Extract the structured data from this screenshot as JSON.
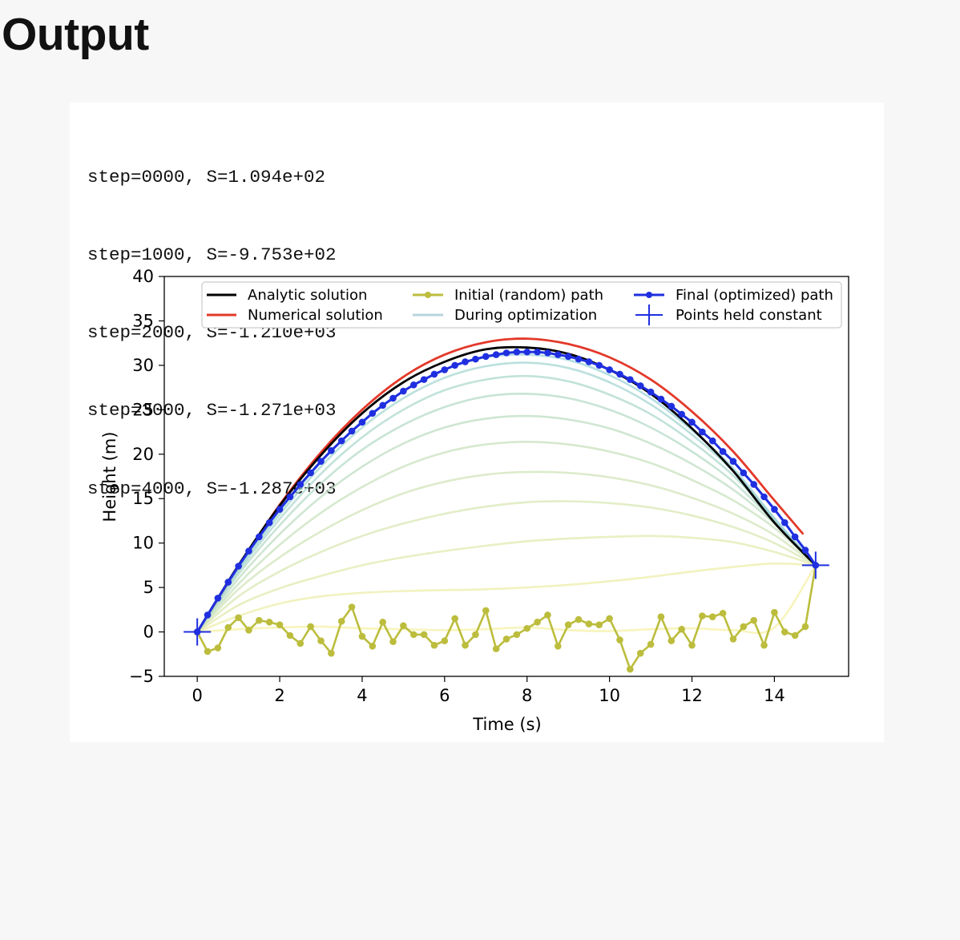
{
  "heading": "Output",
  "log_lines": [
    "step=0000, S=1.094e+02",
    "step=1000, S=-9.753e+02",
    "step=2000, S=-1.210e+03",
    "step=3000, S=-1.271e+03",
    "step=4000, S=-1.287e+03"
  ],
  "colors": {
    "analytic": "#000000",
    "numerical": "#e3392a",
    "initial": "#bcbd3d",
    "during": "#b8d4dd",
    "final": "#1f2fe0",
    "held": "#1f2fe0"
  },
  "chart_data": {
    "type": "line",
    "title": "",
    "xlabel": "Time (s)",
    "ylabel": "Height (m)",
    "xlim": [
      -0.8,
      15.8
    ],
    "ylim": [
      -5,
      40
    ],
    "x_ticks": [
      0,
      2,
      4,
      6,
      8,
      10,
      12,
      14
    ],
    "y_ticks": [
      -5,
      0,
      5,
      10,
      15,
      20,
      25,
      30,
      35,
      40
    ],
    "grid": false,
    "legend_position": "top",
    "legend": [
      "Analytic solution",
      "Numerical solution",
      "Initial (random) path",
      "During optimization",
      "Final (optimized) path",
      "Points held constant"
    ],
    "analytic": {
      "name": "Analytic solution",
      "x": [
        0,
        1,
        2,
        3,
        4,
        5,
        6,
        7,
        8,
        9,
        10,
        11,
        12,
        13,
        14,
        15
      ],
      "y": [
        0,
        7.5,
        14.2,
        19.9,
        24.6,
        28.1,
        30.4,
        31.8,
        32.0,
        31.3,
        29.5,
        26.8,
        22.9,
        18.1,
        12.3,
        7.5
      ]
    },
    "numerical": {
      "name": "Numerical solution",
      "x": [
        0,
        1,
        2,
        3,
        4,
        5,
        6,
        7,
        8,
        9,
        10,
        11,
        12,
        13,
        14,
        14.7
      ],
      "y": [
        0,
        7.4,
        14.3,
        20.2,
        25.0,
        28.7,
        31.2,
        32.6,
        33.0,
        32.4,
        30.9,
        28.4,
        24.8,
        20.3,
        14.8,
        11.0
      ]
    },
    "initial": {
      "name": "Initial (random) path",
      "x": [
        0,
        0.25,
        0.5,
        0.75,
        1.0,
        1.25,
        1.5,
        1.75,
        2.0,
        2.25,
        2.5,
        2.75,
        3.0,
        3.25,
        3.5,
        3.75,
        4.0,
        4.25,
        4.5,
        4.75,
        5.0,
        5.25,
        5.5,
        5.75,
        6.0,
        6.25,
        6.5,
        6.75,
        7.0,
        7.25,
        7.5,
        7.75,
        8.0,
        8.25,
        8.5,
        8.75,
        9.0,
        9.25,
        9.5,
        9.75,
        10.0,
        10.25,
        10.5,
        10.75,
        11.0,
        11.25,
        11.5,
        11.75,
        12.0,
        12.25,
        12.5,
        12.75,
        13.0,
        13.25,
        13.5,
        13.75,
        14.0,
        14.25,
        14.5,
        14.75,
        15.0
      ],
      "y": [
        0,
        -2.2,
        -1.8,
        0.5,
        1.6,
        0.2,
        1.3,
        1.1,
        0.8,
        -0.4,
        -1.3,
        0.6,
        -1.0,
        -2.4,
        1.2,
        2.8,
        -0.5,
        -1.6,
        1.1,
        -1.1,
        0.7,
        -0.3,
        -0.3,
        -1.5,
        -1.0,
        1.5,
        -1.5,
        -0.3,
        2.4,
        -1.9,
        -0.8,
        -0.3,
        0.4,
        1.1,
        1.9,
        -1.6,
        0.8,
        1.4,
        0.9,
        0.8,
        1.5,
        -0.9,
        -4.2,
        -2.4,
        -1.4,
        1.7,
        -1.0,
        0.3,
        -1.5,
        1.8,
        1.7,
        2.1,
        -0.8,
        0.6,
        1.3,
        -1.5,
        2.2,
        0.0,
        -0.4,
        0.6,
        7.5
      ]
    },
    "during": {
      "name": "During optimization",
      "x": [
        0,
        1,
        2,
        3,
        4,
        5,
        6,
        7,
        8,
        9,
        10,
        11,
        12,
        13,
        14,
        15
      ],
      "paths": [
        [
          0,
          0.3,
          0.5,
          0.6,
          0.4,
          0.3,
          0.2,
          0.3,
          0.5,
          0.2,
          0.1,
          0.3,
          0.4,
          0.2,
          0.5,
          7.5
        ],
        [
          0,
          1.8,
          3.2,
          4.0,
          4.4,
          4.6,
          4.7,
          4.8,
          5.0,
          5.3,
          5.7,
          6.2,
          6.8,
          7.3,
          7.7,
          7.5
        ],
        [
          0,
          3.0,
          4.9,
          6.3,
          7.5,
          8.4,
          9.1,
          9.7,
          10.2,
          10.5,
          10.7,
          10.8,
          10.6,
          10.1,
          9.0,
          7.5
        ],
        [
          0,
          4.0,
          6.8,
          9.0,
          10.8,
          12.2,
          13.3,
          14.1,
          14.6,
          14.7,
          14.5,
          14.0,
          13.1,
          11.8,
          10.0,
          7.5
        ],
        [
          0,
          4.8,
          8.4,
          11.3,
          13.7,
          15.6,
          16.9,
          17.7,
          18.0,
          17.9,
          17.4,
          16.5,
          15.1,
          13.3,
          10.9,
          7.5
        ],
        [
          0,
          5.4,
          9.8,
          13.4,
          16.3,
          18.6,
          20.2,
          21.1,
          21.4,
          21.1,
          20.3,
          19.0,
          17.1,
          14.8,
          11.7,
          7.5
        ],
        [
          0,
          6.0,
          11.0,
          15.2,
          18.6,
          21.2,
          23.0,
          24.0,
          24.3,
          23.9,
          22.9,
          21.2,
          18.9,
          16.0,
          12.2,
          7.5
        ],
        [
          0,
          6.5,
          12.0,
          16.7,
          20.5,
          23.3,
          25.3,
          26.5,
          26.8,
          26.3,
          25.0,
          23.0,
          20.3,
          16.9,
          12.4,
          7.5
        ],
        [
          0,
          6.8,
          12.7,
          17.8,
          21.9,
          25.0,
          27.2,
          28.4,
          28.8,
          28.2,
          26.7,
          24.5,
          21.4,
          17.6,
          12.6,
          7.5
        ],
        [
          0,
          7.0,
          13.2,
          18.6,
          23.0,
          26.3,
          28.6,
          29.9,
          30.3,
          29.7,
          28.1,
          25.6,
          22.2,
          18.1,
          12.7,
          7.5
        ],
        [
          0,
          7.2,
          13.6,
          19.1,
          23.7,
          27.1,
          29.5,
          30.9,
          31.2,
          30.6,
          28.9,
          26.3,
          22.7,
          18.4,
          12.8,
          7.5
        ]
      ]
    },
    "final": {
      "name": "Final (optimized) path",
      "x": [
        0,
        0.25,
        0.5,
        0.75,
        1.0,
        1.25,
        1.5,
        1.75,
        2.0,
        2.25,
        2.5,
        2.75,
        3.0,
        3.25,
        3.5,
        3.75,
        4.0,
        4.25,
        4.5,
        4.75,
        5.0,
        5.25,
        5.5,
        5.75,
        6.0,
        6.25,
        6.5,
        6.75,
        7.0,
        7.25,
        7.5,
        7.75,
        8.0,
        8.25,
        8.5,
        8.75,
        9.0,
        9.25,
        9.5,
        9.75,
        10.0,
        10.25,
        10.5,
        10.75,
        11.0,
        11.25,
        11.5,
        11.75,
        12.0,
        12.25,
        12.5,
        12.75,
        13.0,
        13.25,
        13.5,
        13.75,
        14.0,
        14.25,
        14.5,
        14.75,
        15.0
      ],
      "y": [
        0,
        1.9,
        3.8,
        5.6,
        7.4,
        9.1,
        10.7,
        12.3,
        13.8,
        15.2,
        16.6,
        17.9,
        19.2,
        20.4,
        21.5,
        22.6,
        23.6,
        24.6,
        25.5,
        26.3,
        27.1,
        27.8,
        28.4,
        29.0,
        29.5,
        30.0,
        30.4,
        30.7,
        31.0,
        31.2,
        31.4,
        31.5,
        31.5,
        31.5,
        31.4,
        31.2,
        31.0,
        30.7,
        30.4,
        30.0,
        29.5,
        29.0,
        28.4,
        27.7,
        27.0,
        26.2,
        25.4,
        24.5,
        23.6,
        22.5,
        21.5,
        20.3,
        19.2,
        17.9,
        16.6,
        15.2,
        13.8,
        12.3,
        10.7,
        9.2,
        7.5
      ]
    },
    "held": {
      "name": "Points held constant",
      "x": [
        0,
        15
      ],
      "y": [
        0,
        7.5
      ]
    }
  }
}
